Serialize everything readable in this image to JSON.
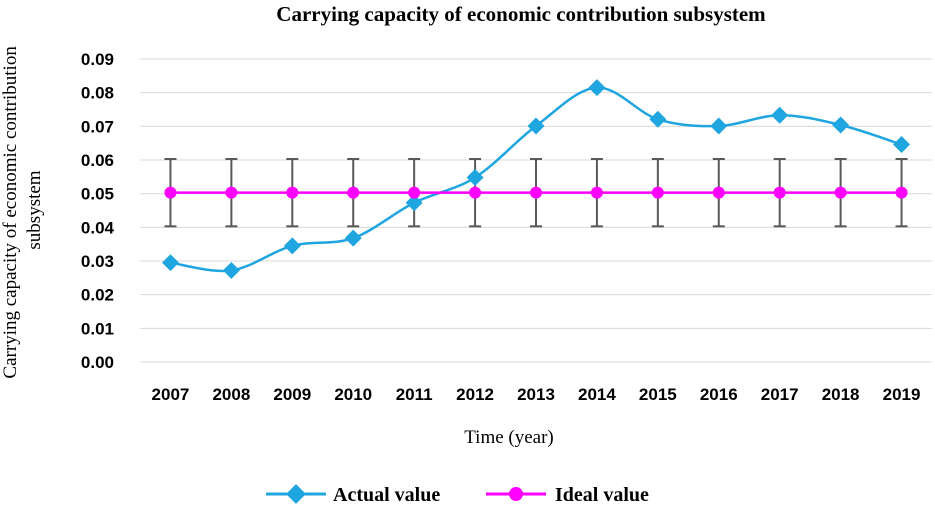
{
  "chart_data": {
    "type": "line",
    "title": "Carrying capacity of economic contribution subsystem",
    "xlabel": "Time (year)",
    "ylabel": "Carrying capacity of economic contribution subsystem",
    "ylabel_lines": [
      "Carrying capacity of economic contribution",
      "subsystem"
    ],
    "categories": [
      "2007",
      "2008",
      "2009",
      "2010",
      "2011",
      "2012",
      "2013",
      "2014",
      "2015",
      "2016",
      "2017",
      "2018",
      "2019"
    ],
    "ylim": [
      0,
      0.09
    ],
    "yticks": [
      "0.00",
      "0.01",
      "0.02",
      "0.03",
      "0.04",
      "0.05",
      "0.06",
      "0.07",
      "0.08",
      "0.09"
    ],
    "grid": true,
    "legend_position": "bottom",
    "series": [
      {
        "name": "Actual value",
        "color": "#1fa5e0",
        "marker": "diamond",
        "smooth": true,
        "values": [
          0.0295,
          0.0272,
          0.0345,
          0.0368,
          0.0473,
          0.0548,
          0.0701,
          0.0815,
          0.0721,
          0.0701,
          0.0733,
          0.0704,
          0.0646
        ]
      },
      {
        "name": "Ideal value",
        "color": "#ff00ff",
        "marker": "circle",
        "smooth": false,
        "values": [
          0.0503,
          0.0503,
          0.0503,
          0.0503,
          0.0503,
          0.0503,
          0.0503,
          0.0503,
          0.0503,
          0.0503,
          0.0503,
          0.0503,
          0.0503
        ],
        "error_bar": 0.01,
        "error_bar_color": "#595959"
      }
    ]
  }
}
